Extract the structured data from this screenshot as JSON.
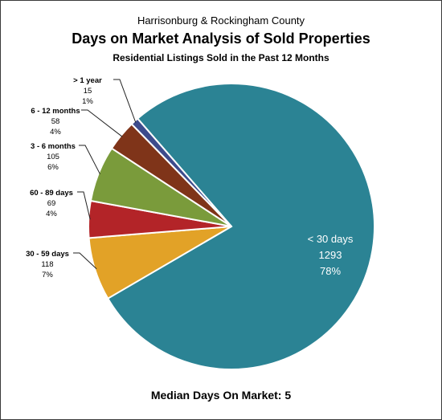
{
  "chart_data": {
    "type": "pie",
    "suptitle": "Harrisonburg & Rockingham County",
    "title": "Days on Market Analysis of Sold Properties",
    "subtitle": "Residential Listings Sold in the Past 12 Months",
    "footer": "Median Days On Market:  5",
    "slices": [
      {
        "label": "< 30 days",
        "value": 1293,
        "percent": "78%",
        "color": "#2b8394"
      },
      {
        "label": "30 - 59 days",
        "value": 118,
        "percent": "7%",
        "color": "#e2a227"
      },
      {
        "label": "60 - 89 days",
        "value": 69,
        "percent": "4%",
        "color": "#b32428"
      },
      {
        "label": "3 - 6 months",
        "value": 105,
        "percent": "6%",
        "color": "#7a9b3b"
      },
      {
        "label": "6 - 12 months",
        "value": 58,
        "percent": "4%",
        "color": "#7f3419"
      },
      {
        "label": "> 1 year",
        "value": 15,
        "percent": "1%",
        "color": "#3d4b8c"
      }
    ]
  }
}
